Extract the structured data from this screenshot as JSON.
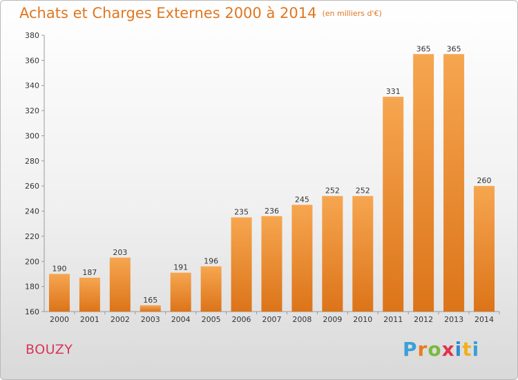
{
  "header": {
    "title": "Achats et Charges Externes 2000 à 2014",
    "subtitle": "(en milliers d'€)"
  },
  "footer": {
    "commune": "BOUZY",
    "brand": "Proxiti",
    "brand_colors": [
      "#3aa0d8",
      "#e97c1f",
      "#7ab941",
      "#e2324d",
      "#2e8bd0",
      "#f2b01e",
      "#3aa0d8"
    ]
  },
  "colors": {
    "bar_top": "#f6a650",
    "bar_bottom": "#dc7419",
    "accent": "#e0761f"
  },
  "chart_data": {
    "type": "bar",
    "title": "Achats et Charges Externes 2000 à 2014",
    "subtitle": "(en milliers d'€)",
    "categories": [
      "2000",
      "2001",
      "2002",
      "2003",
      "2004",
      "2005",
      "2006",
      "2007",
      "2008",
      "2009",
      "2010",
      "2011",
      "2012",
      "2013",
      "2014"
    ],
    "values": [
      190,
      187,
      203,
      165,
      191,
      196,
      235,
      236,
      245,
      252,
      252,
      331,
      365,
      365,
      260
    ],
    "ylim": [
      160,
      380
    ],
    "yticks": [
      160,
      180,
      200,
      220,
      240,
      260,
      280,
      300,
      320,
      340,
      360,
      380
    ],
    "grid": false,
    "data_labels": true
  }
}
